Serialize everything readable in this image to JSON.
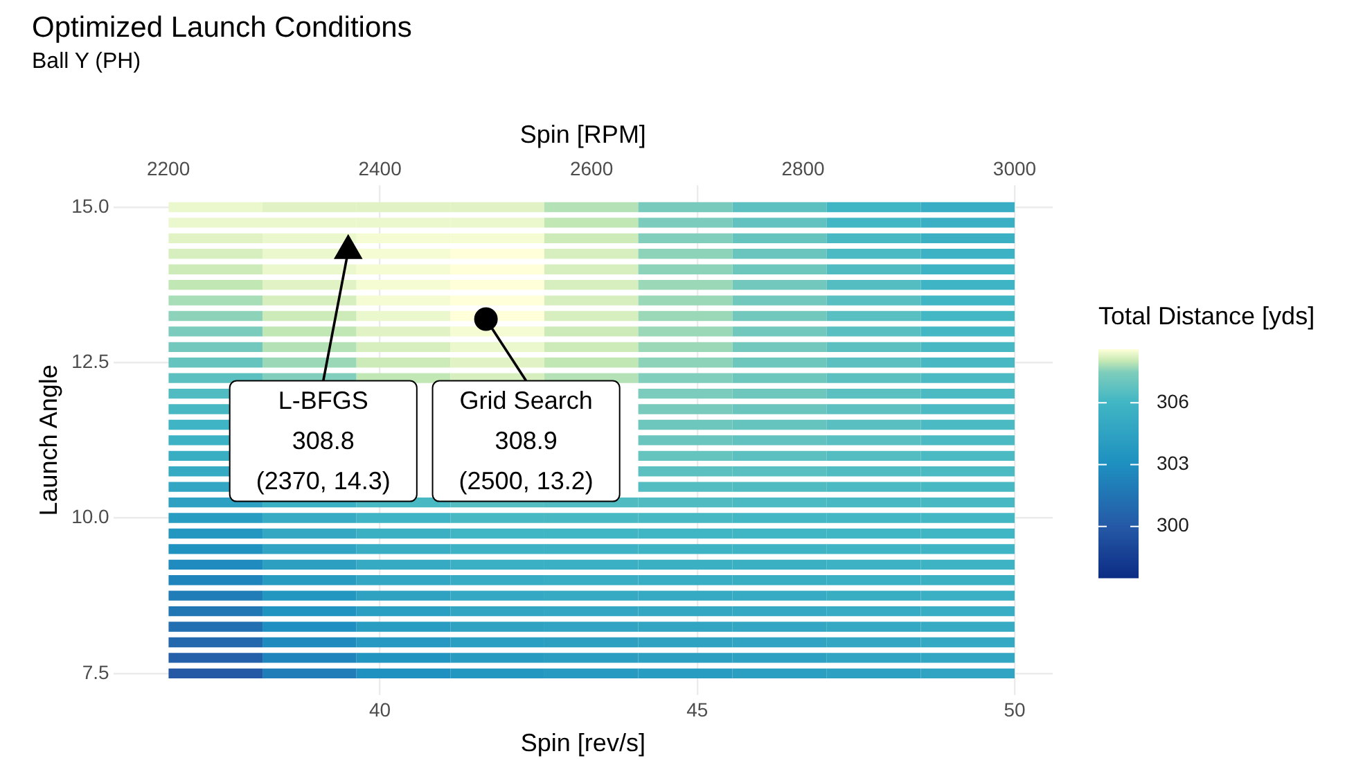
{
  "chart_data": {
    "type": "heatmap",
    "title": "Optimized Launch Conditions",
    "subtitle": "Ball Y (PH)",
    "xlabel": "Spin [rev/s]",
    "x2label": "Spin [RPM]",
    "ylabel": "Launch Angle",
    "clabel": "Total Distance [yds]",
    "xlim": [
      35.8,
      50.6
    ],
    "xticks": [
      40,
      45,
      50
    ],
    "x2lim": [
      2148,
      3036
    ],
    "x2ticks": [
      2200,
      2400,
      2600,
      2800,
      3000
    ],
    "ylim": [
      7.15,
      15.35
    ],
    "yticks": [
      7.5,
      {
        "value": 10,
        "label": "10.0"
      },
      12.5,
      {
        "value": 15,
        "label": "15.0"
      }
    ],
    "clim": [
      297.5,
      308.6
    ],
    "cticks": [
      300,
      303,
      306
    ],
    "grid": true,
    "x": [
      37.41,
      38.89,
      40.37,
      41.85,
      43.33,
      44.81,
      46.3,
      47.78,
      49.26
    ],
    "y": [
      15,
      14.75,
      14.5,
      14.25,
      14,
      13.75,
      13.5,
      13.25,
      13,
      12.75,
      12.5,
      12.25,
      12,
      11.75,
      11.5,
      11.25,
      11,
      10.75,
      10.5,
      10.25,
      10,
      9.75,
      9.5,
      9.25,
      9,
      8.75,
      8.5,
      8.25,
      8,
      7.75,
      7.5
    ],
    "cells": [
      [
        308.4,
        308.3,
        308.3,
        308.3,
        307.9,
        307.3,
        306.7,
        306.0,
        305.3
      ],
      [
        308.4,
        308.4,
        308.4,
        308.4,
        308.0,
        307.4,
        306.8,
        306.1,
        305.5
      ],
      [
        308.3,
        308.4,
        308.5,
        308.5,
        308.1,
        307.5,
        306.9,
        306.2,
        305.6
      ],
      [
        308.2,
        308.4,
        308.5,
        308.6,
        308.2,
        307.6,
        307.0,
        306.3,
        305.7
      ],
      [
        308.1,
        308.4,
        308.5,
        308.6,
        308.2,
        307.6,
        307.1,
        306.4,
        305.8
      ],
      [
        308.0,
        308.3,
        308.5,
        308.6,
        308.2,
        307.7,
        307.2,
        306.5,
        305.9
      ],
      [
        307.8,
        308.2,
        308.5,
        308.6,
        308.2,
        307.7,
        307.2,
        306.6,
        306.0
      ],
      [
        307.6,
        308.1,
        308.4,
        308.6,
        308.2,
        307.7,
        307.2,
        306.6,
        306.1
      ],
      [
        307.4,
        308.0,
        308.3,
        308.5,
        308.1,
        307.7,
        307.2,
        306.6,
        306.1
      ],
      [
        307.2,
        307.9,
        308.2,
        308.4,
        308.1,
        307.7,
        307.2,
        306.7,
        306.2
      ],
      [
        306.9,
        307.7,
        308.1,
        308.3,
        308.0,
        307.6,
        307.1,
        306.7,
        306.2
      ],
      [
        306.7,
        307.5,
        308.0,
        308.2,
        307.9,
        307.5,
        307.1,
        306.7,
        306.3
      ],
      [
        306.4,
        null,
        null,
        null,
        null,
        307.4,
        307.1,
        306.7,
        306.3
      ],
      [
        306.2,
        null,
        null,
        null,
        null,
        307.3,
        307.0,
        306.7,
        306.3
      ],
      [
        305.9,
        null,
        null,
        null,
        null,
        307.1,
        306.9,
        306.6,
        306.3
      ],
      [
        305.7,
        null,
        null,
        null,
        null,
        307.0,
        306.8,
        306.6,
        306.3
      ],
      [
        305.4,
        null,
        null,
        null,
        null,
        306.9,
        306.7,
        306.5,
        306.3
      ],
      [
        305.1,
        null,
        null,
        null,
        null,
        306.7,
        306.6,
        306.4,
        306.3
      ],
      [
        304.8,
        null,
        null,
        null,
        null,
        306.5,
        306.4,
        306.3,
        306.2
      ],
      [
        304.4,
        305.5,
        306.2,
        306.5,
        306.4,
        306.4,
        306.3,
        306.2,
        306.2
      ],
      [
        304.0,
        305.2,
        305.9,
        306.2,
        306.2,
        306.2,
        306.1,
        306.1,
        306.1
      ],
      [
        303.6,
        304.9,
        305.6,
        306.0,
        306.0,
        306.0,
        306.0,
        306.0,
        306.0
      ],
      [
        303.2,
        304.6,
        305.3,
        305.7,
        305.7,
        305.8,
        305.8,
        305.9,
        305.9
      ],
      [
        302.8,
        304.3,
        305.1,
        305.5,
        305.5,
        305.6,
        305.6,
        305.7,
        305.8
      ],
      [
        302.4,
        303.9,
        304.8,
        305.2,
        305.3,
        305.3,
        305.4,
        305.5,
        305.6
      ],
      [
        302.0,
        303.6,
        304.5,
        305.0,
        305.1,
        305.1,
        305.2,
        305.4,
        305.5
      ],
      [
        301.6,
        303.3,
        304.2,
        304.7,
        304.8,
        304.9,
        305.0,
        305.2,
        305.3
      ],
      [
        301.2,
        303.0,
        304.0,
        304.5,
        304.6,
        304.7,
        304.8,
        305.0,
        305.2
      ],
      [
        300.8,
        302.7,
        303.7,
        304.2,
        304.3,
        304.5,
        304.6,
        304.8,
        305.0
      ],
      [
        300.4,
        302.4,
        303.4,
        303.9,
        304.1,
        304.3,
        304.4,
        304.6,
        304.8
      ],
      [
        300.0,
        302.0,
        303.1,
        303.6,
        303.8,
        304.0,
        304.2,
        304.4,
        304.6
      ]
    ],
    "series": [
      {
        "type": "scatter",
        "marker": "triangle",
        "color": "#000000",
        "x": [
          39.5
        ],
        "values": [
          14.3
        ]
      },
      {
        "type": "scatter",
        "marker": "circle",
        "color": "#000000",
        "x": [
          41.67
        ],
        "values": [
          13.2
        ]
      }
    ],
    "annotations": [
      {
        "text": "L-BFGS\n308.8\n(2370, 14.3)",
        "x": 39.5,
        "y": 14.3
      },
      {
        "text": "Grid Search\n308.9\n(2500, 13.2)",
        "x": 41.67,
        "y": 13.2
      }
    ]
  }
}
